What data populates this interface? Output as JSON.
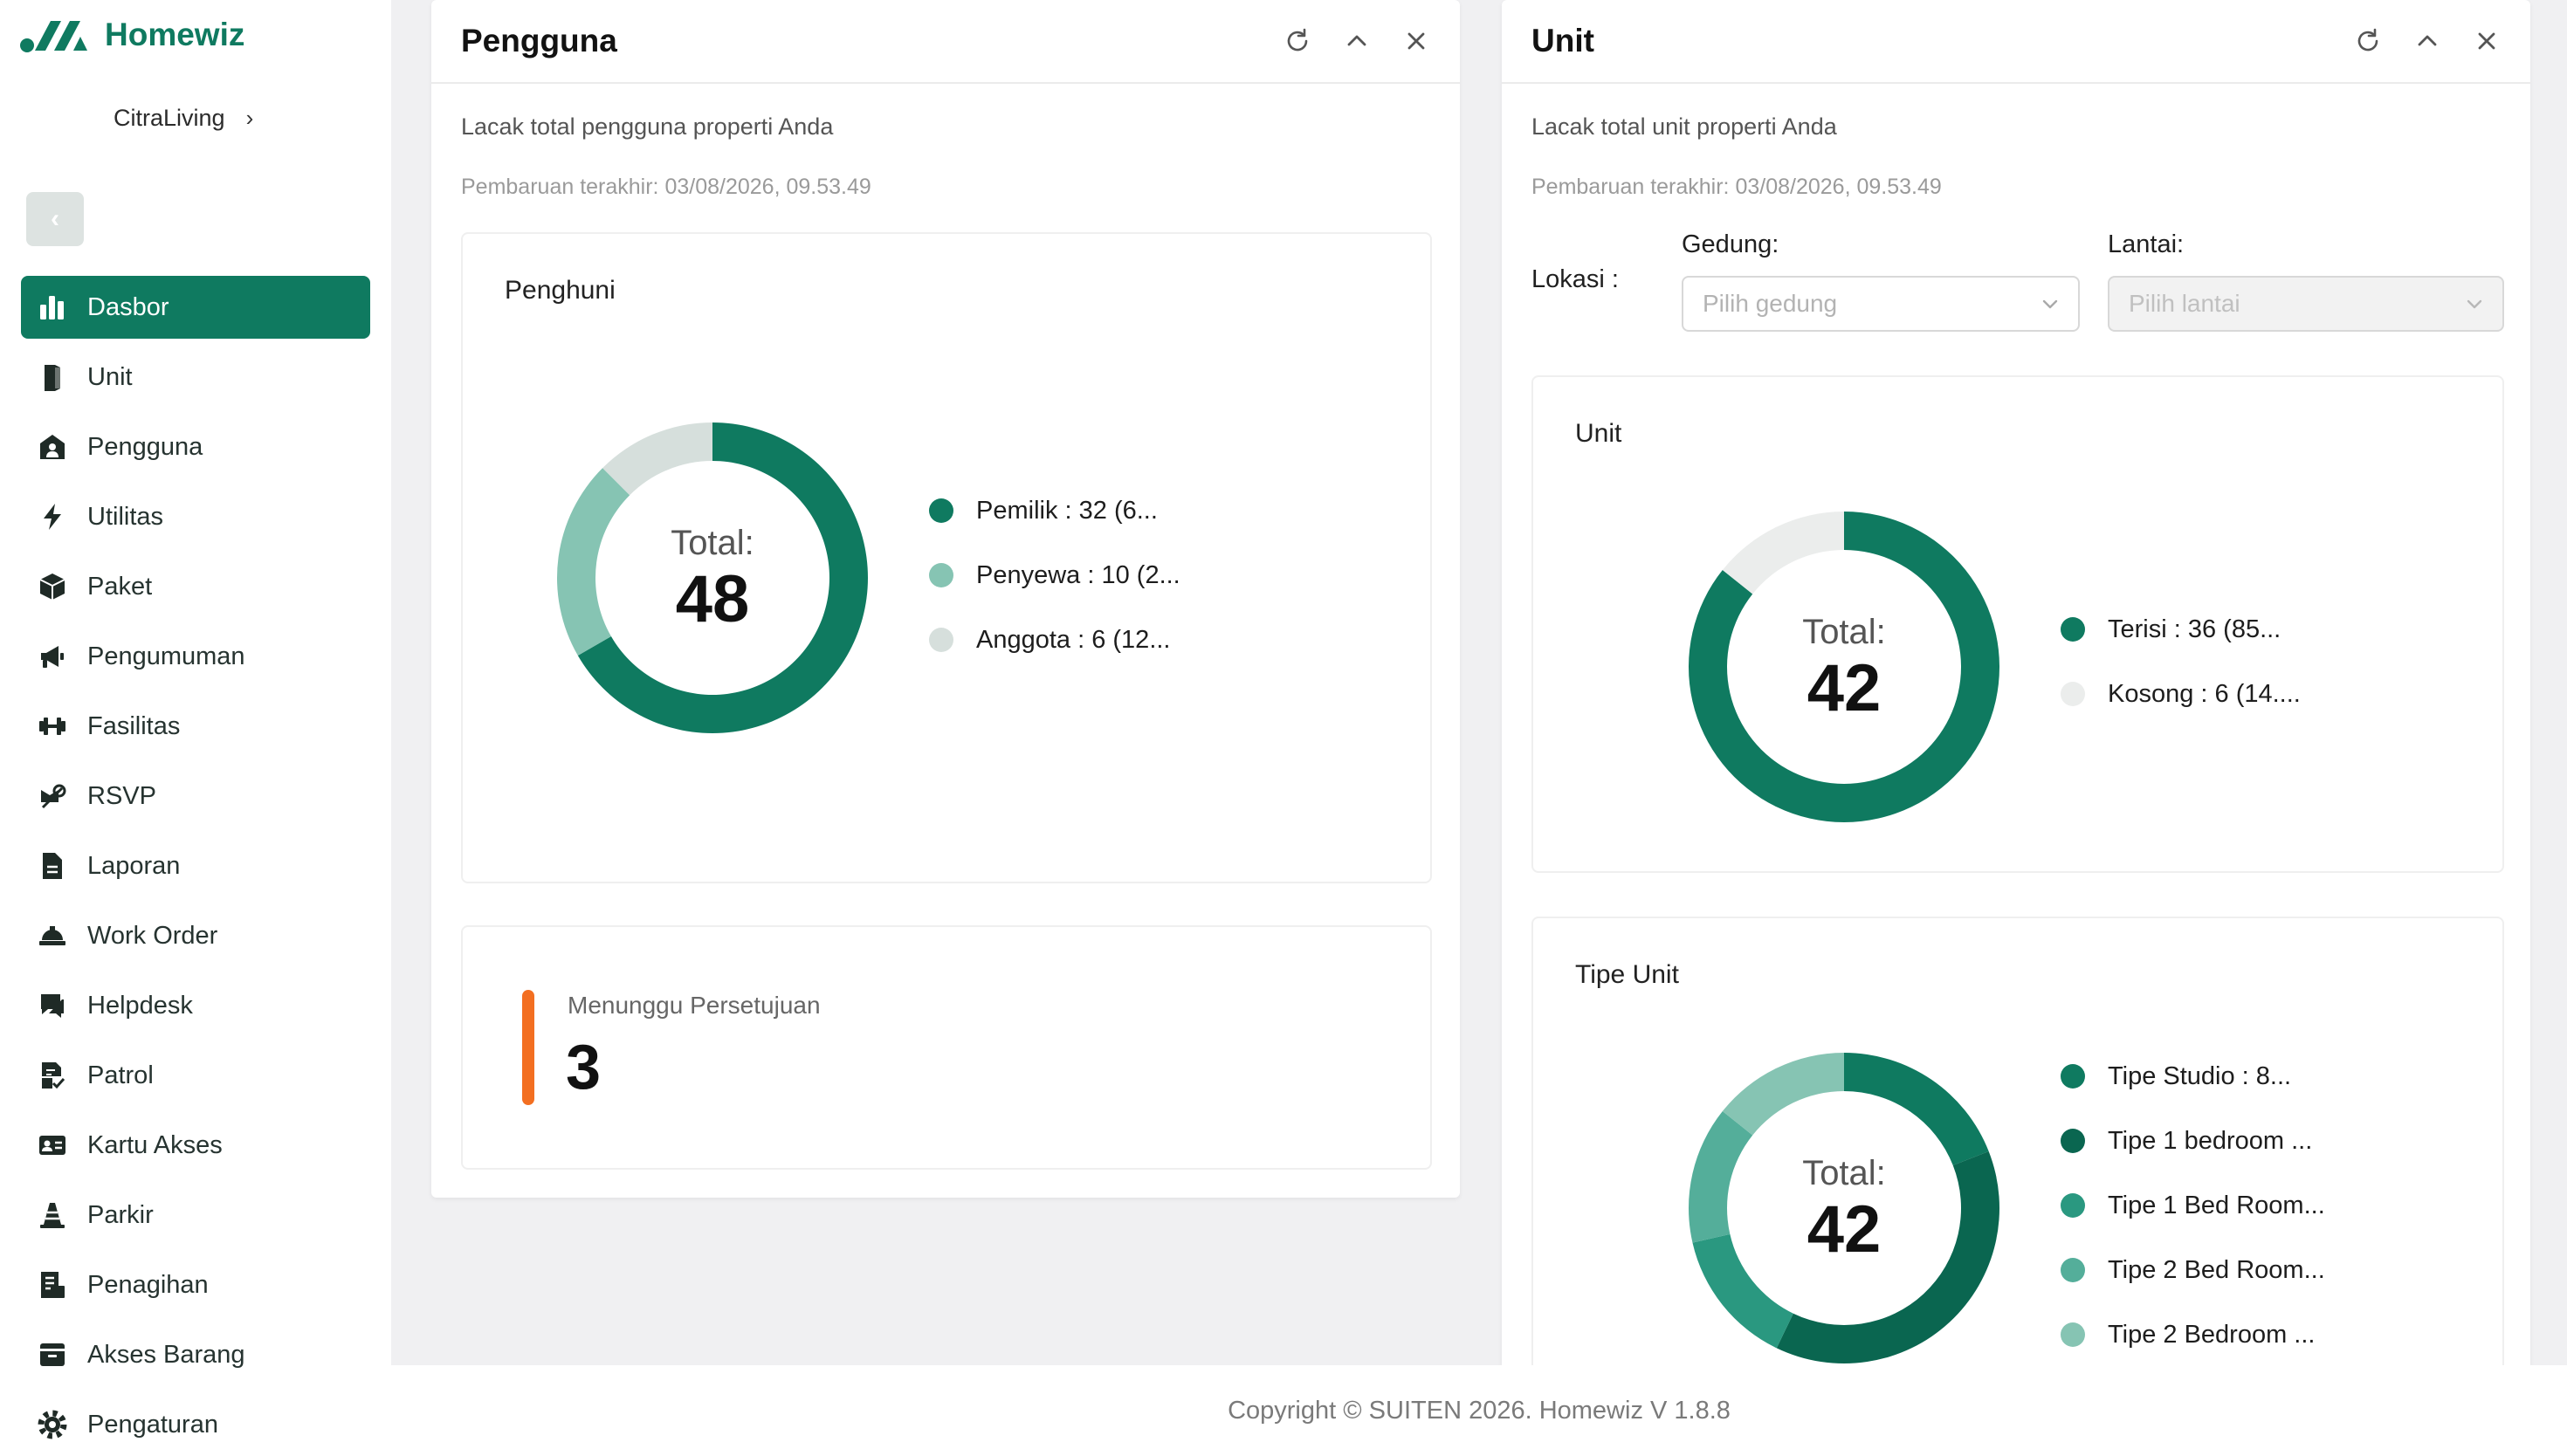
{
  "app": {
    "name": "Homewiz",
    "org": "CitraLiving",
    "brand_color": "#0f7a60"
  },
  "nav": [
    {
      "label": "Dasbor",
      "icon": "chart-bar-icon",
      "active": true
    },
    {
      "label": "Unit",
      "icon": "door-icon"
    },
    {
      "label": "Pengguna",
      "icon": "home-user-icon"
    },
    {
      "label": "Utilitas",
      "icon": "bolt-icon"
    },
    {
      "label": "Paket",
      "icon": "package-icon"
    },
    {
      "label": "Pengumuman",
      "icon": "megaphone-icon"
    },
    {
      "label": "Fasilitas",
      "icon": "dumbbell-icon"
    },
    {
      "label": "RSVP",
      "icon": "rsvp-icon"
    },
    {
      "label": "Laporan",
      "icon": "document-icon"
    },
    {
      "label": "Work Order",
      "icon": "worker-icon"
    },
    {
      "label": "Helpdesk",
      "icon": "chat-icon"
    },
    {
      "label": "Patrol",
      "icon": "checklist-icon"
    },
    {
      "label": "Kartu Akses",
      "icon": "id-card-icon"
    },
    {
      "label": "Parkir",
      "icon": "traffic-cone-icon"
    },
    {
      "label": "Penagihan",
      "icon": "invoice-icon"
    },
    {
      "label": "Akses Barang",
      "icon": "box-icon"
    },
    {
      "label": "Pengaturan",
      "icon": "gear-icon"
    }
  ],
  "pengguna": {
    "title": "Pengguna",
    "subtitle": "Lacak total pengguna properti Anda",
    "updated": "Pembaruan terakhir: 03/08/2026, 09.53.49",
    "chart_title": "Penghuni",
    "total_label": "Total:",
    "total": "48",
    "pending_label": "Menunggu Persetujuan",
    "pending_value": "3"
  },
  "unit": {
    "title": "Unit",
    "subtitle": "Lacak total unit properti Anda",
    "updated": "Pembaruan terakhir: 03/08/2026, 09.53.49",
    "lokasi_label": "Lokasi :",
    "gedung_label": "Gedung:",
    "gedung_placeholder": "Pilih gedung",
    "lantai_label": "Lantai:",
    "lantai_placeholder": "Pilih lantai",
    "chart_title": "Unit",
    "total_label": "Total:",
    "total": "42",
    "tipe_title": "Tipe Unit",
    "tipe_total_label": "Total:",
    "tipe_total": "42"
  },
  "chart_data": [
    {
      "type": "pie",
      "title": "Penghuni",
      "categories": [
        "Pemilik",
        "Penyewa",
        "Anggota"
      ],
      "values": [
        32,
        10,
        6
      ],
      "legend_text": [
        "Pemilik : 32 (6...",
        "Penyewa : 10 (2...",
        "Anggota : 6 (12..."
      ],
      "colors": [
        "#0f7a60",
        "#86c4b3",
        "#d6dfdc"
      ],
      "legend": "right"
    },
    {
      "type": "pie",
      "title": "Unit",
      "categories": [
        "Terisi",
        "Kosong"
      ],
      "values": [
        36,
        6
      ],
      "legend_text": [
        "Terisi : 36 (85...",
        "Kosong : 6 (14...."
      ],
      "colors": [
        "#0f7a60",
        "#ebedec"
      ],
      "legend": "right"
    },
    {
      "type": "pie",
      "title": "Tipe Unit",
      "categories": [
        "Tipe Studio",
        "Tipe 1 bedroom",
        "Tipe 1 Bed Room",
        "Tipe 2 Bed Room",
        "Tipe 2 Bedroom"
      ],
      "values": [
        8,
        16,
        6,
        6,
        6
      ],
      "legend_text": [
        "Tipe Studio : 8...",
        "Tipe 1 bedroom ...",
        "Tipe 1 Bed Room...",
        "Tipe 2 Bed Room...",
        "Tipe 2 Bedroom ..."
      ],
      "colors": [
        "#0f7a60",
        "#0a6650",
        "#2a9880",
        "#54ae9a",
        "#86c4b3"
      ],
      "legend": "right"
    }
  ],
  "footer": {
    "text": "Copyright © SUITEN 2026. Homewiz V 1.8.8"
  }
}
